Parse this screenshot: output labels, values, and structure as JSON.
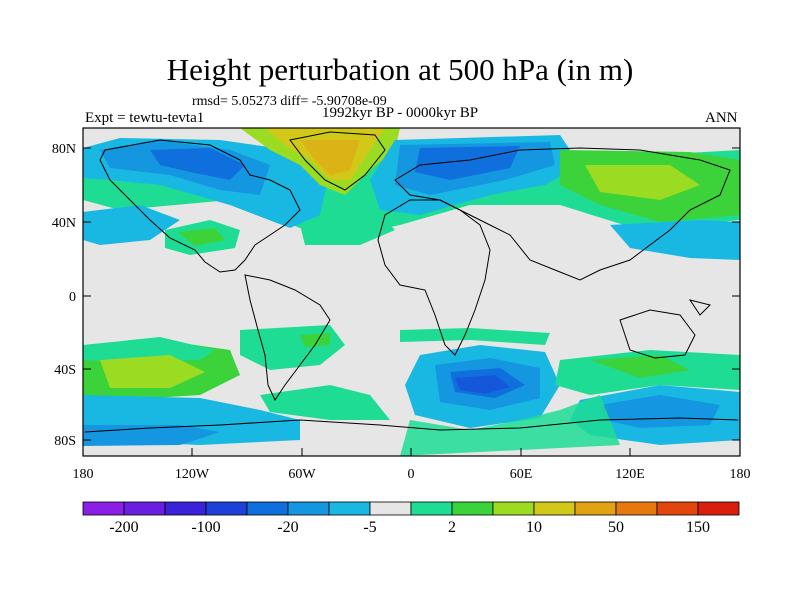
{
  "title": "Height perturbation at 500 hPa (in m)",
  "stats": "rmsd= 5.05273 diff= -5.90708e-09",
  "experiment": "Expt = tewtu-tevta1",
  "period": "1992kyr BP - 0000kyr BP",
  "season": "ANN",
  "lat_ticks": [
    "80N",
    "40N",
    "0",
    "40S",
    "80S"
  ],
  "lon_ticks": [
    "180",
    "120W",
    "60W",
    "0",
    "60E",
    "120E",
    "180"
  ],
  "colorbar": {
    "colors": [
      "#8c1fe6",
      "#6a1ee0",
      "#3a22d8",
      "#1c40d8",
      "#0f6fdc",
      "#1496e0",
      "#19b8e2",
      "#e6e6e6",
      "#1fdc94",
      "#3cd23a",
      "#9bdc22",
      "#d2c81a",
      "#e1a214",
      "#e6780f",
      "#e3460d",
      "#d81e0f"
    ],
    "labels": [
      "-200",
      "-100",
      "-20",
      "-5",
      "2",
      "10",
      "50",
      "150"
    ]
  }
}
